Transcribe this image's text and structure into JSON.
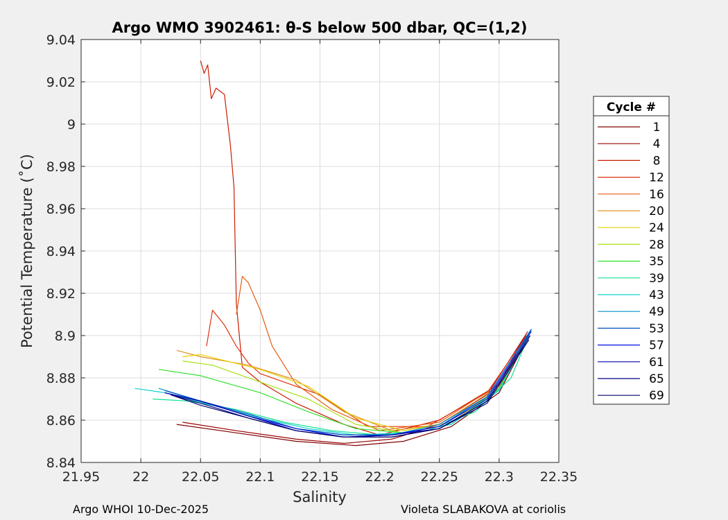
{
  "chart_data": {
    "type": "line",
    "title": "Argo WMO 3902461: θ-S below 500 dbar,  QC=(1,2)",
    "xlabel": "Salinity",
    "ylabel": "Potential Temperature (˚C)",
    "xlim": [
      21.95,
      22.35
    ],
    "ylim": [
      8.84,
      9.04
    ],
    "xticks": [
      "21.95",
      "22",
      "22.05",
      "22.1",
      "22.15",
      "22.2",
      "22.25",
      "22.3",
      "22.35"
    ],
    "yticks": [
      "8.84",
      "8.86",
      "8.88",
      "8.9",
      "8.92",
      "8.94",
      "8.96",
      "8.98",
      "9",
      "9.02",
      "9.04"
    ],
    "grid": true,
    "legend": {
      "title": "Cycle #",
      "placement": "outside-right",
      "entries": [
        "1",
        "4",
        "8",
        "12",
        "16",
        "20",
        "24",
        "28",
        "35",
        "39",
        "43",
        "49",
        "53",
        "57",
        "61",
        "65",
        "69"
      ]
    },
    "series": [
      {
        "name": "1",
        "color": "#800000",
        "x": [
          22.03,
          22.08,
          22.13,
          22.18,
          22.22,
          22.26,
          22.3,
          22.325
        ],
        "y": [
          8.858,
          8.854,
          8.85,
          8.848,
          8.85,
          8.857,
          8.873,
          8.9
        ]
      },
      {
        "name": "4",
        "color": "#9b0000",
        "x": [
          22.035,
          22.08,
          22.13,
          22.17,
          22.21,
          22.25,
          22.29,
          22.323
        ],
        "y": [
          8.859,
          8.855,
          8.851,
          8.849,
          8.851,
          8.858,
          8.872,
          8.901
        ]
      },
      {
        "name": "8",
        "color": "#cc1a00",
        "x": [
          22.05,
          22.053,
          22.056,
          22.059,
          22.063,
          22.07,
          22.075,
          22.078,
          22.08,
          22.085,
          22.1,
          22.13,
          22.17,
          22.2,
          22.25,
          22.3,
          22.324
        ],
        "y": [
          9.03,
          9.024,
          9.028,
          9.012,
          9.017,
          9.014,
          8.99,
          8.97,
          8.915,
          8.885,
          8.878,
          8.868,
          8.858,
          8.853,
          8.86,
          8.877,
          8.902
        ]
      },
      {
        "name": "12",
        "color": "#e03010",
        "x": [
          22.055,
          22.06,
          22.07,
          22.08,
          22.09,
          22.1,
          22.12,
          22.15,
          22.19,
          22.24,
          22.29,
          22.323
        ],
        "y": [
          8.895,
          8.912,
          8.905,
          8.895,
          8.887,
          8.882,
          8.878,
          8.872,
          8.857,
          8.857,
          8.873,
          8.9
        ]
      },
      {
        "name": "16",
        "color": "#e85a10",
        "x": [
          22.08,
          22.085,
          22.09,
          22.1,
          22.11,
          22.13,
          22.16,
          22.2,
          22.25,
          22.3,
          22.326
        ],
        "y": [
          8.91,
          8.928,
          8.925,
          8.912,
          8.895,
          8.877,
          8.865,
          8.855,
          8.859,
          8.877,
          8.902
        ]
      },
      {
        "name": "20",
        "color": "#e09020",
        "x": [
          22.03,
          22.05,
          22.09,
          22.13,
          22.17,
          22.21,
          22.25,
          22.3,
          22.325
        ],
        "y": [
          8.893,
          8.89,
          8.886,
          8.879,
          8.864,
          8.855,
          8.858,
          8.876,
          8.9
        ]
      },
      {
        "name": "24",
        "color": "#e8d000",
        "x": [
          22.035,
          22.05,
          22.1,
          22.14,
          22.18,
          22.22,
          22.26,
          22.3,
          22.326
        ],
        "y": [
          8.89,
          8.891,
          8.884,
          8.876,
          8.861,
          8.855,
          8.859,
          8.875,
          8.902
        ]
      },
      {
        "name": "28",
        "color": "#a8e010",
        "x": [
          22.035,
          22.06,
          22.1,
          22.14,
          22.18,
          22.22,
          22.26,
          22.3,
          22.324
        ],
        "y": [
          8.888,
          8.886,
          8.878,
          8.87,
          8.858,
          8.854,
          8.858,
          8.875,
          8.9
        ]
      },
      {
        "name": "35",
        "color": "#30e030",
        "x": [
          22.015,
          22.05,
          22.1,
          22.14,
          22.18,
          22.22,
          22.26,
          22.3,
          22.326
        ],
        "y": [
          8.884,
          8.881,
          8.873,
          8.864,
          8.856,
          8.854,
          8.858,
          8.875,
          8.902
        ]
      },
      {
        "name": "39",
        "color": "#10e090",
        "x": [
          22.01,
          22.04,
          22.08,
          22.12,
          22.16,
          22.2,
          22.24,
          22.28,
          22.31,
          22.327
        ],
        "y": [
          8.87,
          8.869,
          8.865,
          8.859,
          8.855,
          8.853,
          8.855,
          8.864,
          8.88,
          8.903
        ]
      },
      {
        "name": "43",
        "color": "#10d0d0",
        "x": [
          21.995,
          22.02,
          22.06,
          22.1,
          22.14,
          22.18,
          22.22,
          22.26,
          22.3,
          22.327
        ],
        "y": [
          8.875,
          8.873,
          8.867,
          8.861,
          8.856,
          8.853,
          8.854,
          8.858,
          8.874,
          8.903
        ]
      },
      {
        "name": "49",
        "color": "#0090c8",
        "x": [
          22.015,
          22.05,
          22.09,
          22.13,
          22.17,
          22.21,
          22.25,
          22.29,
          22.327
        ],
        "y": [
          8.875,
          8.869,
          8.862,
          8.856,
          8.853,
          8.853,
          8.858,
          8.871,
          8.903
        ]
      },
      {
        "name": "53",
        "color": "#0050c0",
        "x": [
          22.02,
          22.05,
          22.09,
          22.13,
          22.17,
          22.21,
          22.25,
          22.29,
          22.327
        ],
        "y": [
          8.874,
          8.869,
          8.863,
          8.856,
          8.853,
          8.853,
          8.857,
          8.871,
          8.903
        ]
      },
      {
        "name": "57",
        "color": "#0010e0",
        "x": [
          22.02,
          22.05,
          22.09,
          22.13,
          22.17,
          22.21,
          22.25,
          22.29,
          22.327
        ],
        "y": [
          8.873,
          8.869,
          8.862,
          8.856,
          8.852,
          8.853,
          8.857,
          8.87,
          8.902
        ]
      },
      {
        "name": "61",
        "color": "#0000b0",
        "x": [
          22.02,
          22.05,
          22.09,
          22.13,
          22.17,
          22.21,
          22.25,
          22.29,
          22.326
        ],
        "y": [
          8.873,
          8.869,
          8.862,
          8.855,
          8.852,
          8.853,
          8.856,
          8.869,
          8.9
        ]
      },
      {
        "name": "65",
        "color": "#000080",
        "x": [
          22.025,
          22.05,
          22.09,
          22.13,
          22.17,
          22.21,
          22.25,
          22.29,
          22.325
        ],
        "y": [
          8.872,
          8.868,
          8.861,
          8.855,
          8.852,
          8.852,
          8.856,
          8.869,
          8.899
        ]
      },
      {
        "name": "69",
        "color": "#00006a",
        "x": [
          22.025,
          22.05,
          22.09,
          22.13,
          22.17,
          22.21,
          22.25,
          22.29,
          22.325
        ],
        "y": [
          8.872,
          8.867,
          8.861,
          8.855,
          8.852,
          8.852,
          8.856,
          8.868,
          8.898
        ]
      }
    ]
  },
  "footer": {
    "left": "Argo WHOI 10-Dec-2025",
    "right": "Violeta SLABAKOVA at coriolis"
  }
}
